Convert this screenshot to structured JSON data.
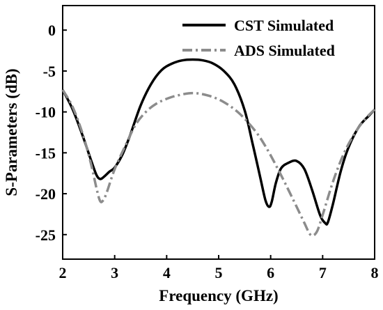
{
  "chart_data": {
    "type": "line",
    "title": "",
    "xlabel": "Frequency (GHz)",
    "ylabel": "S-Parameters (dB)",
    "xlim": [
      2,
      8
    ],
    "ylim": [
      -28,
      3
    ],
    "xticks": [
      2,
      3,
      4,
      5,
      6,
      7,
      8
    ],
    "yticks": [
      0,
      -5,
      -10,
      -15,
      -20,
      -25
    ],
    "xtick_labels": [
      "2",
      "3",
      "4",
      "5",
      "6",
      "7",
      "8"
    ],
    "ytick_labels": [
      "0",
      "-5",
      "-10",
      "-15",
      "-20",
      "-25"
    ],
    "grid": false,
    "legend_position": "top-right",
    "series": [
      {
        "name": "CST Simulated",
        "color": "#000000",
        "style": "solid",
        "x": [
          2.0,
          2.2,
          2.4,
          2.55,
          2.65,
          2.72,
          2.8,
          2.9,
          3.0,
          3.15,
          3.3,
          3.5,
          3.7,
          3.9,
          4.1,
          4.3,
          4.5,
          4.7,
          4.9,
          5.1,
          5.3,
          5.5,
          5.65,
          5.8,
          5.9,
          5.97,
          6.02,
          6.1,
          6.2,
          6.35,
          6.5,
          6.65,
          6.8,
          6.95,
          7.05,
          7.1,
          7.2,
          7.35,
          7.5,
          7.7,
          7.9,
          8.0
        ],
        "y": [
          -7.3,
          -9.8,
          -13.2,
          -16.0,
          -17.7,
          -18.2,
          -17.9,
          -17.3,
          -16.8,
          -15.2,
          -12.8,
          -9.2,
          -6.6,
          -4.9,
          -4.1,
          -3.7,
          -3.6,
          -3.7,
          -4.1,
          -5.0,
          -6.6,
          -9.8,
          -13.8,
          -18.0,
          -20.8,
          -21.6,
          -21.0,
          -18.7,
          -16.9,
          -16.2,
          -16.0,
          -17.0,
          -19.6,
          -22.6,
          -23.6,
          -23.5,
          -21.2,
          -17.2,
          -14.3,
          -11.8,
          -10.4,
          -9.7
        ]
      },
      {
        "name": "ADS Simulated",
        "color": "#8c8c8c",
        "style": "dashdot",
        "x": [
          2.0,
          2.2,
          2.4,
          2.55,
          2.65,
          2.72,
          2.78,
          2.85,
          3.0,
          3.2,
          3.4,
          3.6,
          3.8,
          4.0,
          4.2,
          4.5,
          4.8,
          5.1,
          5.4,
          5.7,
          5.9,
          6.1,
          6.3,
          6.5,
          6.65,
          6.75,
          6.82,
          6.9,
          7.0,
          7.2,
          7.4,
          7.6,
          7.8,
          8.0
        ],
        "y": [
          -7.3,
          -9.5,
          -13.0,
          -16.5,
          -19.3,
          -20.9,
          -20.8,
          -19.8,
          -17.0,
          -14.2,
          -11.6,
          -10.0,
          -9.0,
          -8.4,
          -8.0,
          -7.7,
          -8.0,
          -8.8,
          -10.2,
          -12.3,
          -14.2,
          -16.5,
          -19.0,
          -21.6,
          -23.6,
          -24.9,
          -25.1,
          -24.5,
          -22.6,
          -18.5,
          -15.2,
          -12.8,
          -11.0,
          -9.7
        ]
      }
    ]
  }
}
